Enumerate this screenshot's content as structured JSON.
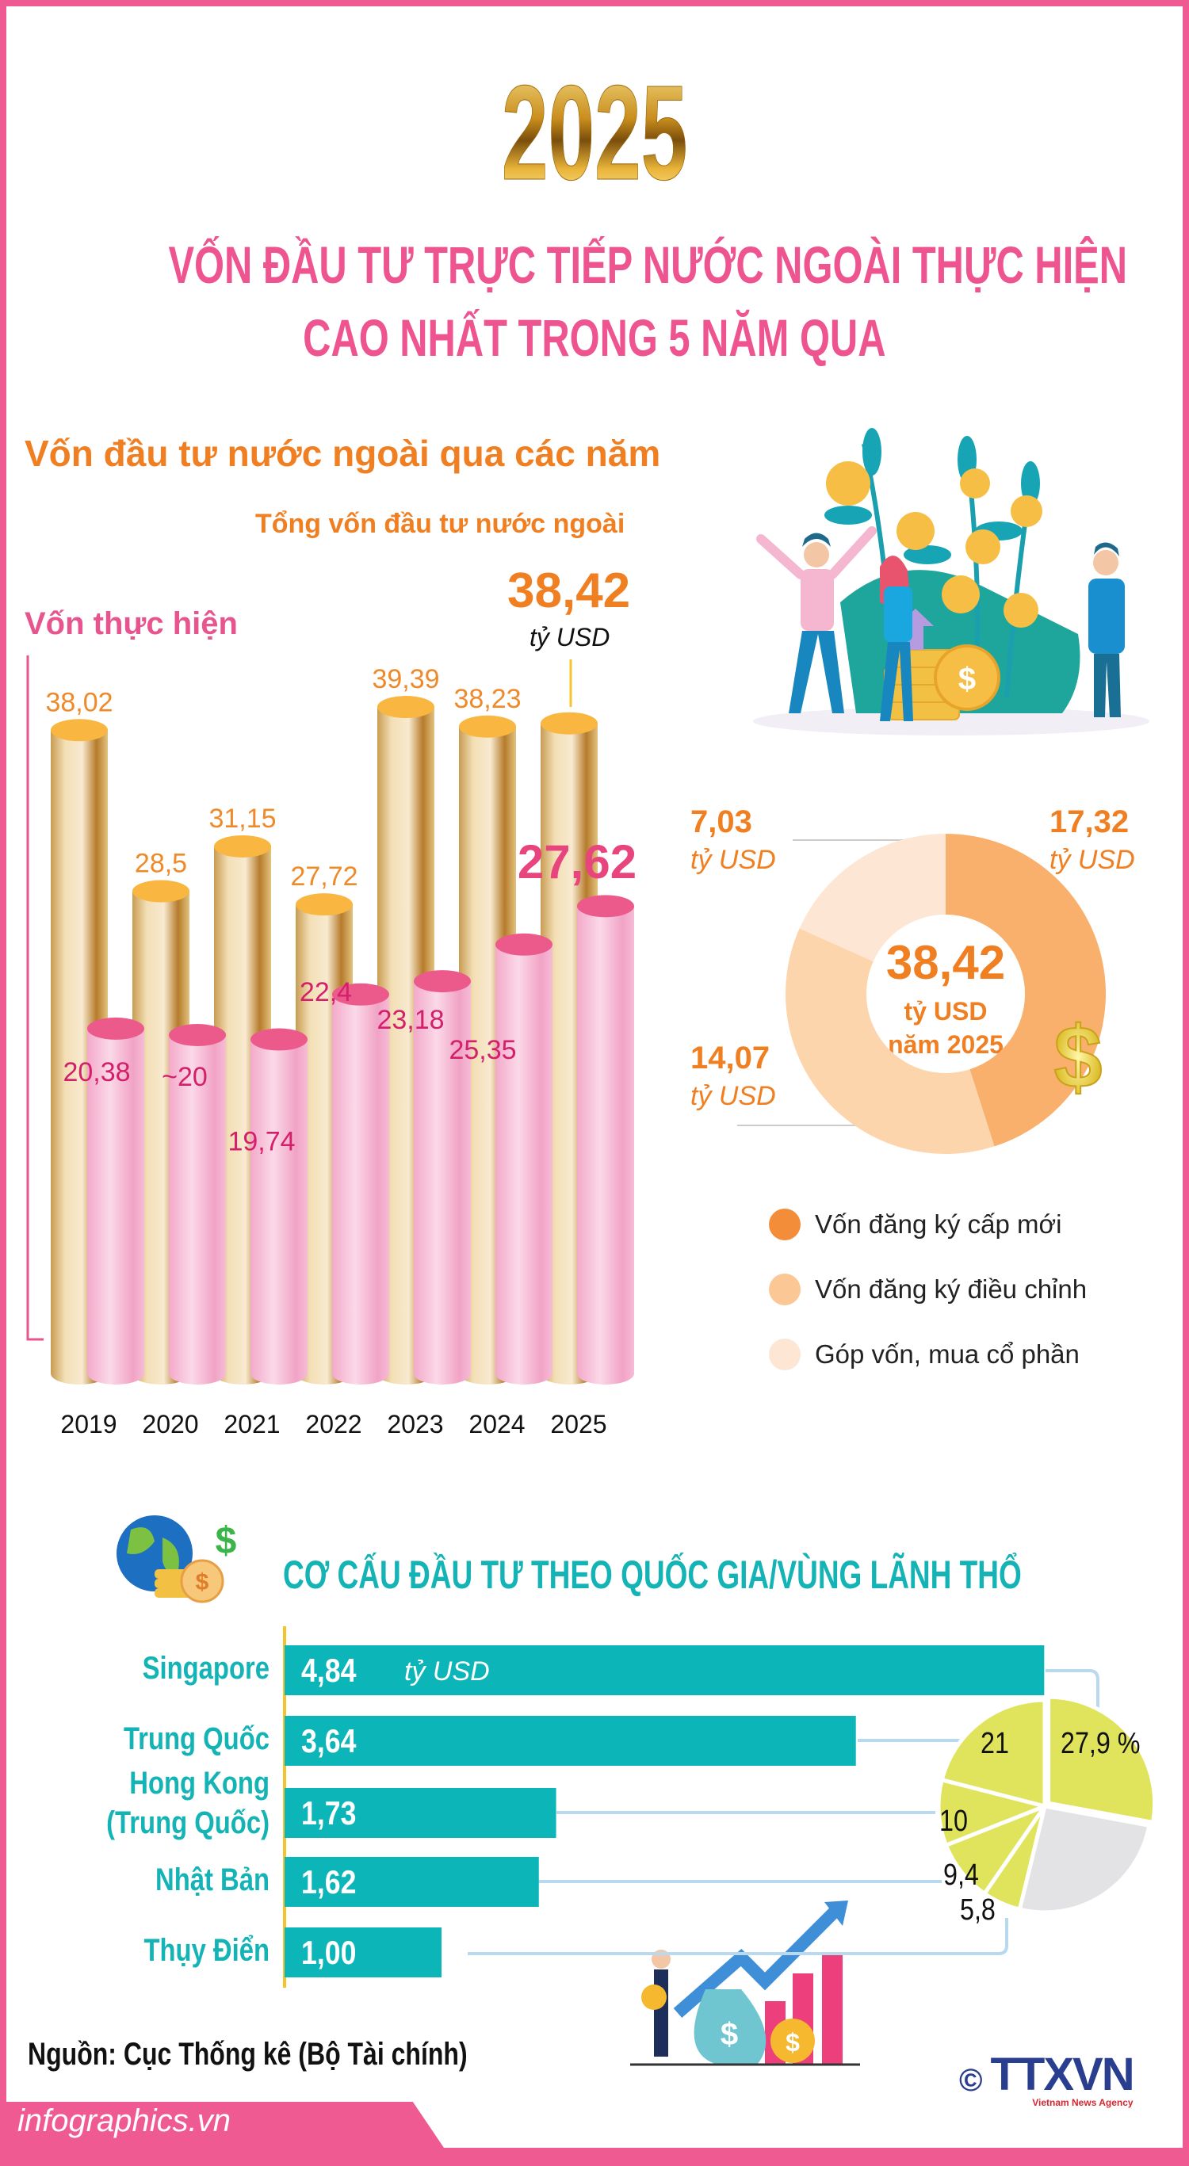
{
  "header": {
    "year": "2025",
    "title_line1": "VỐN ĐẦU TƯ TRỰC TIẾP NƯỚC NGOÀI THỰC HIỆN",
    "title_line2": "CAO NHẤT TRONG 5 NĂM QUA"
  },
  "chart_data": [
    {
      "type": "bar",
      "title": "Vốn đầu tư nước ngoài qua các năm",
      "categories": [
        "2019",
        "2020",
        "2021",
        "2022",
        "2023",
        "2024",
        "2025"
      ],
      "series": [
        {
          "name": "Tổng vốn đầu tư nước ngoài",
          "values": [
            38.02,
            28.5,
            31.15,
            27.72,
            39.39,
            38.23,
            38.42
          ],
          "labels": [
            "38,02",
            "28,5",
            "31,15",
            "27,72",
            "39,39",
            "38,23",
            "38,42"
          ],
          "color": "#f9b640"
        },
        {
          "name": "Vốn thực hiện",
          "values": [
            20.38,
            20,
            19.74,
            22.4,
            23.18,
            25.35,
            27.62
          ],
          "labels": [
            "20,38",
            "~20",
            "19,74",
            "22,4",
            "23,18",
            "25,35",
            "27,62"
          ],
          "color": "#ec5a8c"
        }
      ],
      "total_2025": "38,42",
      "unit": "tỷ USD"
    },
    {
      "type": "pie",
      "center": {
        "value": "38,42",
        "unit": "tỷ USD",
        "year": "năm 2025"
      },
      "slices": [
        {
          "name": "Vốn đăng ký cấp mới",
          "value": 17.32,
          "label": "17,32",
          "color": "#f8b06c",
          "legend_color": "#f38d3a"
        },
        {
          "name": "Vốn đăng ký điều chỉnh",
          "value": 14.07,
          "label": "14,07",
          "color": "#fcd5ac",
          "legend_color": "#fbc795"
        },
        {
          "name": "Góp vốn, mua cổ phần",
          "value": 7.03,
          "label": "7,03",
          "color": "#fde7d4",
          "legend_color": "#fde6d3"
        }
      ],
      "unit": "tỷ USD"
    },
    {
      "type": "bar",
      "orientation": "horizontal",
      "title": "CƠ CẤU ĐẦU TƯ THEO QUỐC GIA/VÙNG LÃNH THỔ",
      "categories": [
        "Singapore",
        "Trung Quốc",
        "Hong Kong (Trung Quốc)",
        "Nhật Bản",
        "Thụy Điển"
      ],
      "category_lines": [
        [
          "Singapore"
        ],
        [
          "Trung Quốc"
        ],
        [
          "Hong Kong",
          "(Trung Quốc)"
        ],
        [
          "Nhật Bản"
        ],
        [
          "Thụy Điển"
        ]
      ],
      "values": [
        4.84,
        3.64,
        1.73,
        1.62,
        1.0
      ],
      "labels": [
        "4,84",
        "3,64",
        "1,73",
        "1,62",
        "1,00"
      ],
      "unit": "tỷ USD",
      "color": "#0bb5b8"
    },
    {
      "type": "pie",
      "slices": [
        {
          "label": "27,9 %",
          "value": 27.9,
          "color": "#dfe45c"
        },
        {
          "label": "",
          "value": 25.9,
          "color": "#e3e3e5"
        },
        {
          "label": "5,8",
          "value": 5.8,
          "color": "#dfe45c"
        },
        {
          "label": "9,4",
          "value": 9.4,
          "color": "#dfe45c"
        },
        {
          "label": "10",
          "value": 10,
          "color": "#dfe45c"
        },
        {
          "label": "21",
          "value": 21,
          "color": "#dfe45c"
        }
      ]
    }
  ],
  "labels": {
    "section1_title": "Vốn đầu tư nước ngoài qua các năm",
    "total_label": "Tổng vốn đầu tư nước ngoài",
    "realized_label": "Vốn thực hiện",
    "unit": "tỷ USD"
  },
  "footer": {
    "source": "Nguồn: Cục Thống kê (Bộ Tài chính)",
    "site": "infographics.vn",
    "logo": "TTXVN",
    "logo_sub": "Vietnam News Agency",
    "copyright": "©"
  },
  "colors": {
    "pink": "#ee5490",
    "orange": "#f07f22",
    "teal": "#13b3b6"
  }
}
